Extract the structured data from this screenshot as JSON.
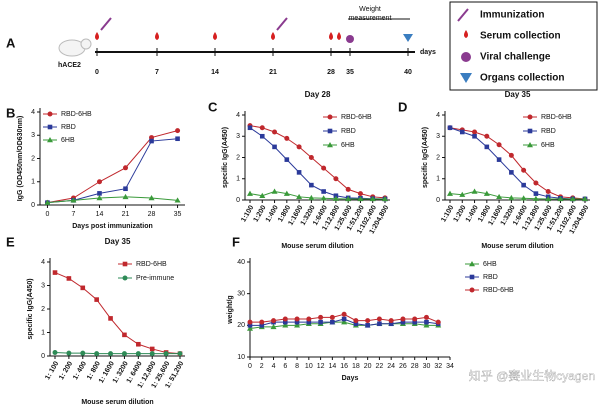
{
  "timeline": {
    "panel": "A",
    "group": "hACE2",
    "days": [
      0,
      7,
      14,
      21,
      28,
      35,
      40
    ],
    "unit": "days",
    "weight_label": [
      "Weight",
      "measurement"
    ],
    "legend": [
      "Immunization",
      "Serum collection",
      "Viral challenge",
      "Organs collection"
    ]
  },
  "watermark": "知乎 @赛业生物cyagen",
  "chart_data": [
    {
      "type": "line",
      "panel": "B",
      "xlabel": "Days post immunization",
      "ylabel": "IgG (OD450nm/OD630nm)",
      "x": [
        0,
        7,
        14,
        21,
        28,
        35
      ],
      "xlim": [
        -2,
        37
      ],
      "xticks": [
        0,
        7,
        14,
        21,
        28,
        35
      ],
      "ylim": [
        0,
        4
      ],
      "yticks": [
        0,
        1,
        2,
        3,
        4
      ],
      "legend": "upper left",
      "series": [
        {
          "name": "RBD-6HB",
          "color": "#c0282d",
          "marker": "circle",
          "values": [
            0.1,
            0.3,
            1.0,
            1.6,
            2.9,
            3.2
          ]
        },
        {
          "name": "RBD",
          "color": "#2b3a9a",
          "marker": "square",
          "values": [
            0.1,
            0.2,
            0.5,
            0.7,
            2.75,
            2.85
          ]
        },
        {
          "name": "6HB",
          "color": "#3a9a3a",
          "marker": "triangle",
          "values": [
            0.1,
            0.2,
            0.3,
            0.35,
            0.3,
            0.2
          ]
        }
      ]
    },
    {
      "type": "line",
      "panel": "C",
      "title": "Day 28",
      "xlabel": "Mouse serum dilution",
      "ylabel": "specific IgG(A450)",
      "categories": [
        "1:100",
        "1:200",
        "1:400",
        "1:800",
        "1:1600",
        "1:3200",
        "1:6400",
        "1:12,800",
        "1:25,600",
        "1:51,200",
        "1:102,400",
        "1:204,800"
      ],
      "ylim": [
        0,
        4
      ],
      "yticks": [
        0,
        1,
        2,
        3,
        4
      ],
      "legend": "upper right",
      "series": [
        {
          "name": "RBD-6HB",
          "color": "#c0282d",
          "marker": "circle",
          "values": [
            3.5,
            3.4,
            3.2,
            2.9,
            2.5,
            2.0,
            1.5,
            1.0,
            0.5,
            0.3,
            0.15,
            0.1
          ]
        },
        {
          "name": "RBD",
          "color": "#2b3a9a",
          "marker": "square",
          "values": [
            3.4,
            3.0,
            2.5,
            1.9,
            1.3,
            0.7,
            0.4,
            0.2,
            0.1,
            0.08,
            0.06,
            0.05
          ]
        },
        {
          "name": "6HB",
          "color": "#3a9a3a",
          "marker": "triangle",
          "values": [
            0.3,
            0.2,
            0.4,
            0.3,
            0.15,
            0.1,
            0.08,
            0.06,
            0.05,
            0.05,
            0.05,
            0.05
          ]
        }
      ]
    },
    {
      "type": "line",
      "panel": "D",
      "title": "Day 35",
      "xlabel": "Mouse serum dilution",
      "ylabel": "specific IgG(A450)",
      "categories": [
        "1:100",
        "1:200",
        "1:400",
        "1:800",
        "1:1600",
        "1:3200",
        "1:6400",
        "1:12,800",
        "1:25,600",
        "1:51,200",
        "1:102,400",
        "1:204,800"
      ],
      "ylim": [
        0,
        4
      ],
      "yticks": [
        0,
        1,
        2,
        3,
        4
      ],
      "legend": "upper right",
      "series": [
        {
          "name": "RBD-6HB",
          "color": "#c0282d",
          "marker": "circle",
          "values": [
            3.4,
            3.3,
            3.2,
            3.0,
            2.6,
            2.1,
            1.4,
            0.8,
            0.4,
            0.15,
            0.1,
            0.05
          ]
        },
        {
          "name": "RBD",
          "color": "#2b3a9a",
          "marker": "square",
          "values": [
            3.4,
            3.2,
            3.0,
            2.5,
            1.9,
            1.3,
            0.7,
            0.3,
            0.15,
            0.08,
            0.05,
            0.05
          ]
        },
        {
          "name": "6HB",
          "color": "#3a9a3a",
          "marker": "triangle",
          "values": [
            0.3,
            0.25,
            0.4,
            0.3,
            0.15,
            0.1,
            0.08,
            0.06,
            0.05,
            0.05,
            0.05,
            0.05
          ]
        }
      ]
    },
    {
      "type": "line",
      "panel": "E",
      "title": "Day 35",
      "xlabel": "Mouse serum dilution",
      "ylabel": "specific IgG(A450)",
      "categories": [
        "1: 100",
        "1: 200",
        "1: 400",
        "1: 800",
        "1: 1600",
        "1: 3200",
        "1: 6400",
        "1: 12,800",
        "1: 25,600",
        "1: 51,200"
      ],
      "ylim": [
        0,
        4
      ],
      "yticks": [
        0,
        1,
        2,
        3,
        4
      ],
      "legend": "upper right",
      "series": [
        {
          "name": "RBD-6HB",
          "color": "#c0282d",
          "marker": "square",
          "values": [
            3.55,
            3.3,
            2.9,
            2.4,
            1.6,
            0.9,
            0.5,
            0.3,
            0.15,
            0.1
          ]
        },
        {
          "name": "Pre-immune",
          "color": "#2e8b57",
          "marker": "circle",
          "values": [
            0.15,
            0.12,
            0.12,
            0.1,
            0.1,
            0.1,
            0.1,
            0.1,
            0.1,
            0.1
          ]
        }
      ]
    },
    {
      "type": "line",
      "panel": "F",
      "xlabel": "Days",
      "ylabel": "weight/g",
      "x": [
        0,
        2,
        4,
        6,
        8,
        10,
        12,
        14,
        16,
        18,
        20,
        22,
        24,
        26,
        28,
        30,
        32
      ],
      "xlim": [
        0,
        34
      ],
      "xticks": [
        0,
        2,
        4,
        6,
        8,
        10,
        12,
        14,
        16,
        18,
        20,
        22,
        24,
        26,
        28,
        30,
        32,
        34
      ],
      "ylim": [
        10,
        40
      ],
      "yticks": [
        10,
        20,
        30,
        40
      ],
      "legend": "right",
      "series": [
        {
          "name": "6HB",
          "color": "#3a9a3a",
          "marker": "triangle",
          "values": [
            19,
            19.5,
            19.5,
            20,
            20,
            20.5,
            20.5,
            21,
            21,
            20,
            20,
            20.5,
            20.5,
            20.5,
            20.5,
            20,
            20
          ]
        },
        {
          "name": "RBD",
          "color": "#2b3a9a",
          "marker": "square",
          "values": [
            20,
            20,
            21,
            21,
            21,
            21,
            21,
            21,
            22,
            20.5,
            20,
            20.5,
            20.5,
            21,
            21,
            21,
            20.5
          ]
        },
        {
          "name": "RBD-6HB",
          "color": "#c0282d",
          "marker": "circle",
          "values": [
            21,
            21,
            21.5,
            22,
            22,
            22,
            22.5,
            22.5,
            23.5,
            21.5,
            21.5,
            22,
            21.5,
            22,
            22,
            22.5,
            21
          ]
        }
      ]
    }
  ]
}
